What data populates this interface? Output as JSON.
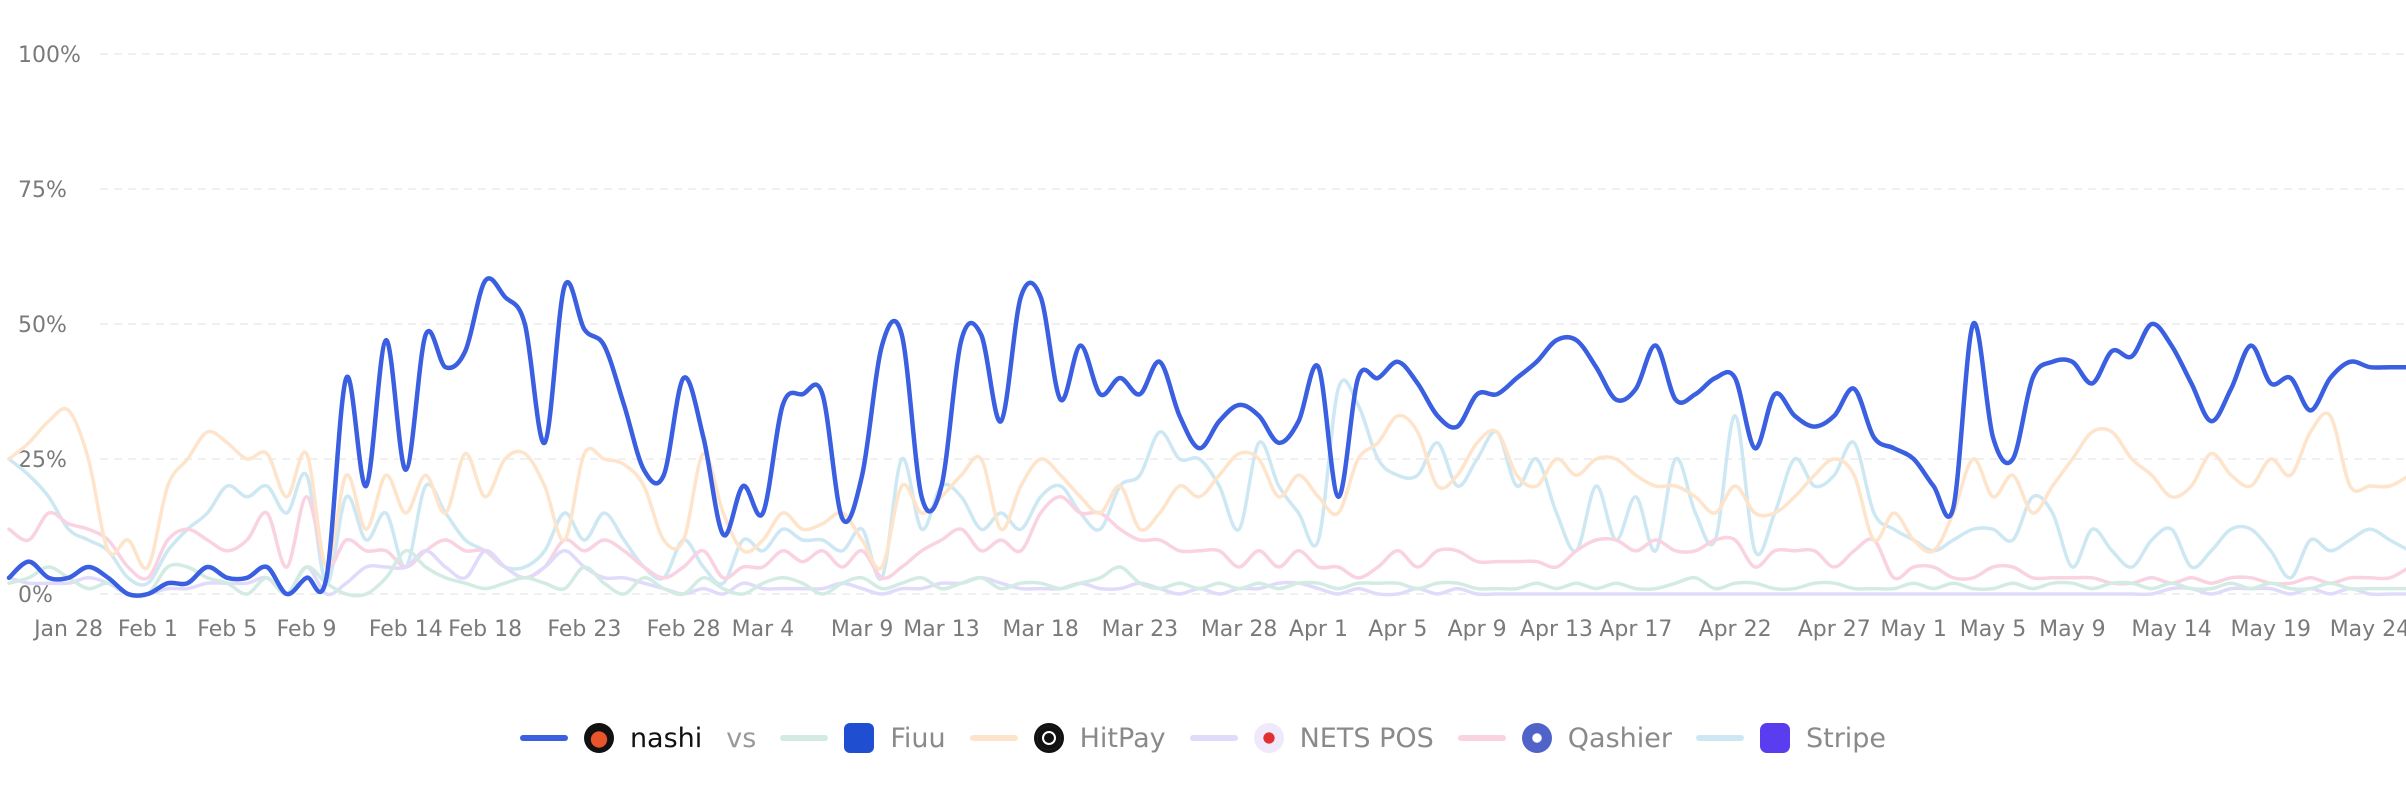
{
  "chart_data": {
    "type": "line",
    "categories": [
      null,
      null,
      null,
      "Jan 28",
      null,
      null,
      null,
      "Feb 1",
      null,
      null,
      null,
      "Feb 5",
      null,
      null,
      null,
      "Feb 9",
      null,
      null,
      null,
      null,
      "Feb 14",
      null,
      null,
      null,
      "Feb 18",
      null,
      null,
      null,
      null,
      "Feb 23",
      null,
      null,
      null,
      null,
      "Feb 28",
      null,
      null,
      null,
      "Mar 4",
      null,
      null,
      null,
      null,
      "Mar 9",
      null,
      null,
      null,
      "Mar 13",
      null,
      null,
      null,
      null,
      "Mar 18",
      null,
      null,
      null,
      null,
      "Mar 23",
      null,
      null,
      null,
      null,
      "Mar 28",
      null,
      null,
      null,
      "Apr 1",
      null,
      null,
      null,
      "Apr 5",
      null,
      null,
      null,
      "Apr 9",
      null,
      null,
      null,
      "Apr 13",
      null,
      null,
      null,
      "Apr 17",
      null,
      null,
      null,
      null,
      "Apr 22",
      null,
      null,
      null,
      null,
      "Apr 27",
      null,
      null,
      null,
      "May 1",
      null,
      null,
      null,
      "May 5",
      null,
      null,
      null,
      "May 9",
      null,
      null,
      null,
      null,
      "May 14",
      null,
      null,
      null,
      null,
      "May 19",
      null,
      null,
      null,
      null,
      "May 24",
      null,
      null
    ],
    "ylim": [
      0,
      100
    ],
    "yticks": [
      {
        "value": 0,
        "label": "0%"
      },
      {
        "value": 25,
        "label": "25%"
      },
      {
        "value": 50,
        "label": "50%"
      },
      {
        "value": 75,
        "label": "75%"
      },
      {
        "value": 100,
        "label": "100%"
      }
    ],
    "grid": true,
    "legend_joiner": "vs",
    "series": [
      {
        "name": "nashi",
        "color": "#3a5fe0",
        "values": [
          3,
          6,
          3,
          3,
          5,
          3,
          0,
          0,
          2,
          2,
          5,
          3,
          3,
          5,
          0,
          3,
          3,
          40,
          20,
          47,
          23,
          48,
          42,
          45,
          58,
          55,
          50,
          28,
          57,
          49,
          46,
          35,
          23,
          22,
          40,
          29,
          11,
          20,
          15,
          35,
          37,
          37,
          14,
          22,
          46,
          48,
          18,
          20,
          47,
          48,
          32,
          55,
          55,
          36,
          46,
          37,
          40,
          37,
          43,
          33,
          27,
          32,
          35,
          33,
          28,
          32,
          42,
          18,
          40,
          40,
          43,
          39,
          33,
          31,
          37,
          37,
          40,
          43,
          47,
          47,
          42,
          36,
          38,
          46,
          36,
          37,
          40,
          40,
          27,
          37,
          33,
          31,
          33,
          38,
          29,
          27,
          25,
          20,
          16,
          50,
          29,
          25,
          40,
          43,
          43,
          39,
          45,
          44,
          50,
          46,
          39,
          32,
          38,
          46,
          39,
          40,
          34,
          40,
          43,
          42,
          42,
          42
        ]
      },
      {
        "name": "Fiuu",
        "color": "#d2ece4",
        "values": [
          2,
          3,
          5,
          3,
          1,
          2,
          0,
          0,
          5,
          5,
          3,
          2,
          0,
          3,
          0,
          5,
          2,
          0,
          0,
          3,
          8,
          5,
          3,
          2,
          1,
          2,
          3,
          2,
          1,
          5,
          2,
          0,
          3,
          1,
          0,
          3,
          1,
          0,
          2,
          3,
          2,
          0,
          2,
          3,
          1,
          2,
          3,
          1,
          2,
          3,
          1,
          2,
          2,
          1,
          2,
          3,
          5,
          2,
          1,
          2,
          1,
          2,
          1,
          2,
          1,
          2,
          2,
          1,
          2,
          2,
          2,
          1,
          2,
          2,
          1,
          1,
          1,
          2,
          1,
          2,
          1,
          2,
          1,
          1,
          2,
          3,
          1,
          2,
          2,
          1,
          1,
          2,
          2,
          1,
          1,
          1,
          2,
          1,
          2,
          1,
          1,
          2,
          1,
          2,
          2,
          1,
          2,
          2,
          1,
          2,
          1,
          1,
          2,
          1,
          2,
          1,
          1,
          2,
          1,
          1,
          1,
          1
        ]
      },
      {
        "name": "HitPay",
        "color": "#fde4cb",
        "values": [
          25,
          28,
          32,
          34,
          25,
          8,
          10,
          5,
          20,
          25,
          30,
          28,
          25,
          26,
          18,
          26,
          5,
          22,
          12,
          22,
          15,
          22,
          15,
          26,
          18,
          25,
          26,
          20,
          10,
          26,
          25,
          24,
          20,
          10,
          10,
          26,
          15,
          8,
          10,
          15,
          12,
          13,
          15,
          10,
          5,
          20,
          15,
          18,
          22,
          25,
          12,
          20,
          25,
          22,
          18,
          15,
          20,
          12,
          15,
          20,
          18,
          22,
          26,
          25,
          18,
          22,
          18,
          15,
          25,
          28,
          33,
          30,
          20,
          22,
          28,
          30,
          22,
          20,
          25,
          22,
          25,
          25,
          22,
          20,
          20,
          18,
          15,
          20,
          15,
          15,
          18,
          22,
          25,
          22,
          10,
          15,
          10,
          8,
          15,
          25,
          18,
          22,
          15,
          20,
          25,
          30,
          30,
          25,
          22,
          18,
          20,
          26,
          22,
          20,
          25,
          22,
          30,
          33,
          20,
          20,
          20,
          22
        ]
      },
      {
        "name": "NETS POS",
        "color": "#e1dbfb",
        "values": [
          3,
          2,
          2,
          2,
          3,
          2,
          0,
          0,
          1,
          1,
          2,
          2,
          2,
          3,
          0,
          5,
          0,
          2,
          5,
          5,
          5,
          8,
          5,
          3,
          8,
          5,
          3,
          5,
          8,
          5,
          3,
          3,
          2,
          1,
          0,
          1,
          0,
          2,
          1,
          1,
          1,
          1,
          2,
          1,
          0,
          1,
          1,
          2,
          2,
          3,
          2,
          1,
          1,
          1,
          2,
          1,
          1,
          2,
          1,
          0,
          1,
          0,
          1,
          1,
          2,
          2,
          1,
          0,
          1,
          0,
          0,
          1,
          0,
          1,
          0,
          0,
          0,
          0,
          0,
          0,
          0,
          0,
          0,
          0,
          0,
          0,
          0,
          0,
          0,
          0,
          0,
          0,
          0,
          0,
          0,
          0,
          0,
          0,
          0,
          0,
          0,
          0,
          0,
          0,
          0,
          0,
          0,
          0,
          0,
          1,
          1,
          0,
          1,
          1,
          1,
          0,
          1,
          0,
          1,
          0,
          0,
          0
        ]
      },
      {
        "name": "Qashier",
        "color": "#f9d3e1",
        "values": [
          12,
          10,
          15,
          13,
          12,
          10,
          5,
          3,
          10,
          12,
          10,
          8,
          10,
          15,
          5,
          18,
          5,
          10,
          8,
          8,
          5,
          8,
          10,
          8,
          8,
          5,
          3,
          5,
          10,
          8,
          10,
          8,
          5,
          3,
          5,
          8,
          3,
          5,
          5,
          8,
          6,
          8,
          5,
          8,
          3,
          5,
          8,
          10,
          12,
          8,
          10,
          8,
          15,
          18,
          15,
          15,
          12,
          10,
          10,
          8,
          8,
          8,
          5,
          8,
          5,
          8,
          5,
          5,
          3,
          5,
          8,
          5,
          8,
          8,
          6,
          6,
          6,
          6,
          5,
          8,
          10,
          10,
          8,
          10,
          8,
          8,
          10,
          10,
          5,
          8,
          8,
          8,
          5,
          8,
          10,
          3,
          5,
          5,
          3,
          3,
          5,
          5,
          3,
          3,
          3,
          3,
          2,
          2,
          3,
          2,
          3,
          2,
          3,
          3,
          2,
          2,
          3,
          2,
          3,
          3,
          3,
          5
        ]
      },
      {
        "name": "Stripe",
        "color": "#cde8f3",
        "values": [
          25,
          22,
          18,
          12,
          10,
          8,
          3,
          2,
          8,
          12,
          15,
          20,
          18,
          20,
          15,
          22,
          2,
          18,
          10,
          15,
          5,
          20,
          15,
          10,
          8,
          5,
          5,
          8,
          15,
          10,
          15,
          10,
          5,
          3,
          10,
          5,
          2,
          10,
          8,
          12,
          10,
          10,
          8,
          12,
          3,
          25,
          12,
          20,
          18,
          12,
          15,
          12,
          18,
          20,
          15,
          12,
          20,
          22,
          30,
          25,
          25,
          20,
          12,
          28,
          20,
          15,
          10,
          38,
          35,
          25,
          22,
          22,
          28,
          20,
          25,
          30,
          20,
          25,
          15,
          8,
          20,
          10,
          18,
          8,
          25,
          15,
          10,
          33,
          8,
          15,
          25,
          20,
          22,
          28,
          15,
          12,
          10,
          8,
          10,
          12,
          12,
          10,
          18,
          15,
          5,
          12,
          8,
          5,
          10,
          12,
          5,
          8,
          12,
          12,
          8,
          3,
          10,
          8,
          10,
          12,
          10,
          8
        ]
      }
    ]
  }
}
